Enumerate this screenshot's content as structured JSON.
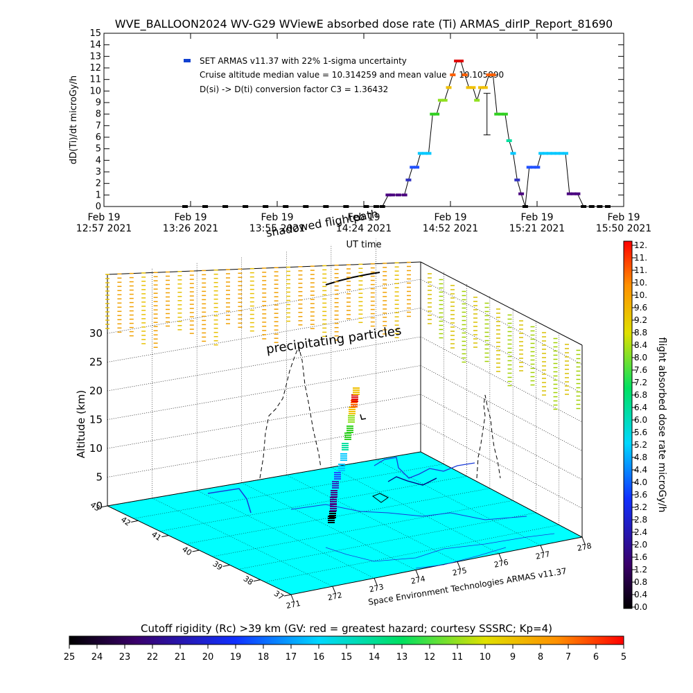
{
  "title": "WVE_BALLOON2024 WV-G29 WViewE absorbed dose rate (Ti) ARMAS_dirIP_Report_81690",
  "chart_data": [
    {
      "type": "line",
      "title": "WVE_BALLOON2024 WV-G29 WViewE absorbed dose rate (Ti) ARMAS_dirIP_Report_81690",
      "xlabel": "UT time",
      "ylabel": "dD(Ti)/dt microGy/h",
      "ylim": [
        0,
        15
      ],
      "yticks": [
        "0",
        "1",
        "2",
        "3",
        "4",
        "5",
        "6",
        "7",
        "8",
        "9",
        "10",
        "11",
        "12",
        "13",
        "14",
        "15"
      ],
      "xticks": [
        {
          "top": "Feb 19",
          "bottom": "12:57 2021"
        },
        {
          "top": "Feb 19",
          "bottom": "13:26 2021"
        },
        {
          "top": "Feb 19",
          "bottom": "13:55 2021"
        },
        {
          "top": "Feb 19",
          "bottom": "14:24 2021"
        },
        {
          "top": "Feb 19",
          "bottom": "14:52 2021"
        },
        {
          "top": "Feb 19",
          "bottom": "15:21 2021"
        },
        {
          "top": "Feb 19",
          "bottom": "15:50 2021"
        }
      ],
      "x_minutes_since_first_tick_range": [
        0,
        173
      ],
      "legend": {
        "series_label": "SET ARMAS v11.37 with 22% 1-sigma uncertainty",
        "line2": "Cruise altitude median value = 10.314259 and mean value = 10.105890",
        "line3": "D(si) -> D(ti) conversion factor C3 = 1.36432",
        "marker_color": "#1040d0"
      },
      "overlay_text": "shadowed flightpath",
      "series": [
        {
          "name": "SET ARMAS v11.37",
          "x_min": [
            10,
            20,
            30,
            40,
            50,
            60,
            70,
            80,
            90,
            100,
            105,
            108,
            111,
            113,
            116,
            119,
            121,
            123,
            125,
            127,
            129,
            131,
            133,
            135,
            137,
            139,
            141,
            143,
            145,
            147,
            149,
            151,
            153,
            155,
            157,
            159,
            161,
            163,
            165,
            167,
            169,
            171,
            173,
            175,
            177,
            179,
            181,
            183,
            185,
            187,
            189,
            191,
            193,
            195,
            197,
            199,
            201,
            203,
            205,
            208,
            212,
            216,
            220
          ],
          "y": [
            0,
            0,
            0,
            0,
            0,
            0,
            0,
            0,
            0,
            0,
            0,
            0,
            1,
            1,
            1,
            1,
            2.3,
            3.4,
            3.4,
            4.6,
            4.6,
            4.6,
            8,
            8,
            9.2,
            9.2,
            10.3,
            11.4,
            12.6,
            12.6,
            11.4,
            10.3,
            10.3,
            9.2,
            10.3,
            10.3,
            11.4,
            11.4,
            8,
            8,
            8,
            5.7,
            4.6,
            2.3,
            1.1,
            0,
            3.4,
            3.4,
            3.4,
            4.6,
            4.6,
            4.6,
            4.6,
            4.6,
            4.6,
            4.6,
            1.1,
            1.1,
            1.1,
            0,
            0,
            0,
            0
          ]
        }
      ],
      "errorbar": {
        "x_min": 160,
        "y": 8,
        "low": 6.2,
        "high": 9.8
      }
    },
    {
      "type": "scatter",
      "title": "3D flight path view",
      "zlabel": "Altitude (km)",
      "zticks": [
        "0",
        "5",
        "10",
        "15",
        "20",
        "25",
        "30"
      ],
      "lat_ticks": [
        "43",
        "42",
        "41",
        "40",
        "39",
        "38",
        "37"
      ],
      "lon_ticks": [
        "271",
        "272",
        "273",
        "274",
        "275",
        "276",
        "277",
        "278"
      ],
      "annotation": "precipitating particles",
      "credit": "Space Environment Technologies ARMAS v11.37",
      "colorbar": {
        "label": "flight absorbed dose rate microGy/h",
        "ticks": [
          "12.",
          "11.",
          "11.",
          "10.",
          "10.",
          "9.6",
          "9.2",
          "8.8",
          "8.4",
          "8.0",
          "7.6",
          "7.2",
          "6.8",
          "6.4",
          "6.0",
          "5.6",
          "5.2",
          "4.8",
          "4.4",
          "4.0",
          "3.6",
          "3.2",
          "2.8",
          "2.4",
          "2.0",
          "1.6",
          "1.2",
          "0.8",
          "0.4",
          "0.0"
        ]
      }
    },
    {
      "type": "heatmap",
      "title": "Cutoff rigidity (Rc) >39 km (GV: red = greatest hazard; courtesy SSSRC; Kp=4)",
      "ticks": [
        "25",
        "24",
        "23",
        "22",
        "21",
        "20",
        "19",
        "18",
        "17",
        "16",
        "15",
        "14",
        "13",
        "12",
        "11",
        "10",
        "9",
        "8",
        "7",
        "6",
        "5"
      ]
    }
  ]
}
